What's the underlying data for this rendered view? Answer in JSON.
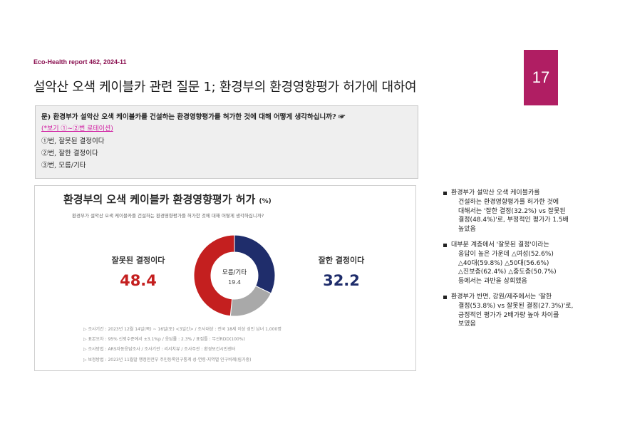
{
  "header": {
    "report": "Eco-Health report 462, 2024-11",
    "title": "설악산 오색 케이블카 관련 질문 1; 환경부의 환경영향평가 허가에 대하여",
    "page_number": "17"
  },
  "question": {
    "text": "문) 환경부가 설악산 오색 케이블카를 건설하는 환경영향평가를 허가한 것에 대해 어떻게 생각하십니까? ☞",
    "note": "(*보기 ①~②번 로테이션)",
    "options": [
      "①번, 잘못된 결정이다",
      "②번, 잘한 결정이다",
      "③번, 모름/기타"
    ]
  },
  "card": {
    "title": "환경부의 오색 케이블카 환경영향평가 허가",
    "unit": "(%)",
    "subtitle": "환경부가 설악산 오색 케이블카를 건설하는 환경영향평가를 허가한 것에 대해 어떻게 생각하십니까?",
    "notes": [
      "▷ 조사기간 : 2023년 12월 14일(목) ~ 16일(토) <3일간> / 조사대상 : 전국 18세 이상 성인 남녀 1,000명",
      "▷ 표본오차 : 95% 신뢰수준에서 ±3.1%p / 응답률 : 2.3% / 표집틀 : 무선RDD(100%)",
      "▷ 조사방법 : ARS자동응답조사 / 조사기관 : 리서치뷰 / 조사주관 : 환경보건시민센터",
      "▷ 보정방법 : 2023년 11월말 행정안전부 주민등록인구통계 성·연령·지역별 인구비례(림가중)"
    ]
  },
  "chart_data": {
    "type": "pie",
    "title": "환경부의 오색 케이블카 환경영향평가 허가 (%)",
    "slices": [
      {
        "label": "잘한 결정이다",
        "value": 32.2,
        "display": "32.2",
        "color": "#1f2d6b"
      },
      {
        "label": "모름/기타",
        "value": 19.4,
        "display": "19.4",
        "color": "#a9a9a9"
      },
      {
        "label": "잘못된 결정이다",
        "value": 48.4,
        "display": "48.4",
        "color": "#c41f1f"
      }
    ]
  },
  "bullets": [
    {
      "lines": [
        "환경부가 설악산 오색 케이블카를",
        "건설하는 환경영향평가를 허가한 것에",
        "대해서는 '잘한 결정(32.2%) vs 잘못된",
        "결정(48.4%)'로, 부정적인 평가가 1.5배",
        "높았음"
      ]
    },
    {
      "lines": [
        "대부분 계층에서 '잘못된 결정'이라는",
        "응답이 높은 가운데 △여성(52.6%)",
        "△40대(59.8%) △50대(56.6%)",
        "△진보층(62.4%) △중도층(50.7%)",
        "등에서는 과반을 상회했음"
      ]
    },
    {
      "lines": [
        "환경부가 반면, 강원/제주에서는 '잘한",
        "결정(53.8%) vs 잘못된 결정(27.3%)'로,",
        "긍정적인 평가가 2배가량 높아 차이를",
        "보였음"
      ]
    }
  ]
}
